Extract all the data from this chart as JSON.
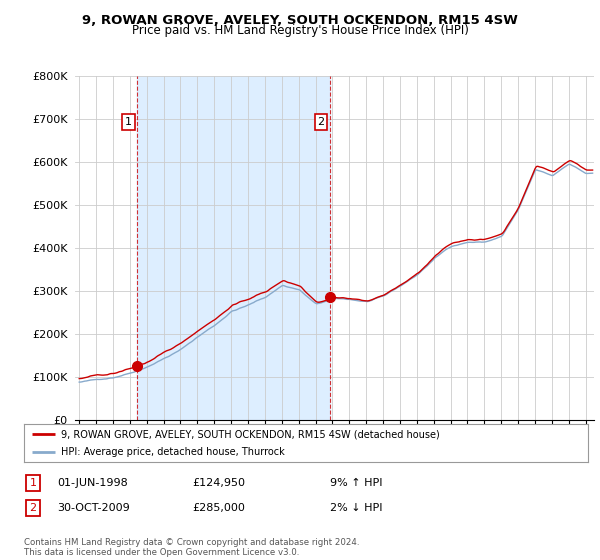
{
  "title1": "9, ROWAN GROVE, AVELEY, SOUTH OCKENDON, RM15 4SW",
  "title2": "Price paid vs. HM Land Registry's House Price Index (HPI)",
  "ylabel_ticks": [
    "£0",
    "£100K",
    "£200K",
    "£300K",
    "£400K",
    "£500K",
    "£600K",
    "£700K",
    "£800K"
  ],
  "ytick_values": [
    0,
    100000,
    200000,
    300000,
    400000,
    500000,
    600000,
    700000,
    800000
  ],
  "ylim": [
    0,
    800000
  ],
  "xlim_start": 1994.75,
  "xlim_end": 2025.5,
  "sale1_x": 1998.42,
  "sale1_y": 124950,
  "sale2_x": 2009.83,
  "sale2_y": 285000,
  "red_line_color": "#cc0000",
  "blue_line_color": "#88aacc",
  "shade_color": "#ddeeff",
  "legend_label_red": "9, ROWAN GROVE, AVELEY, SOUTH OCKENDON, RM15 4SW (detached house)",
  "legend_label_blue": "HPI: Average price, detached house, Thurrock",
  "table_row1_num": "1",
  "table_row1_date": "01-JUN-1998",
  "table_row1_price": "£124,950",
  "table_row1_hpi": "9% ↑ HPI",
  "table_row2_num": "2",
  "table_row2_date": "30-OCT-2009",
  "table_row2_price": "£285,000",
  "table_row2_hpi": "2% ↓ HPI",
  "footnote": "Contains HM Land Registry data © Crown copyright and database right 2024.\nThis data is licensed under the Open Government Licence v3.0.",
  "background_color": "#ffffff",
  "grid_color": "#cccccc"
}
